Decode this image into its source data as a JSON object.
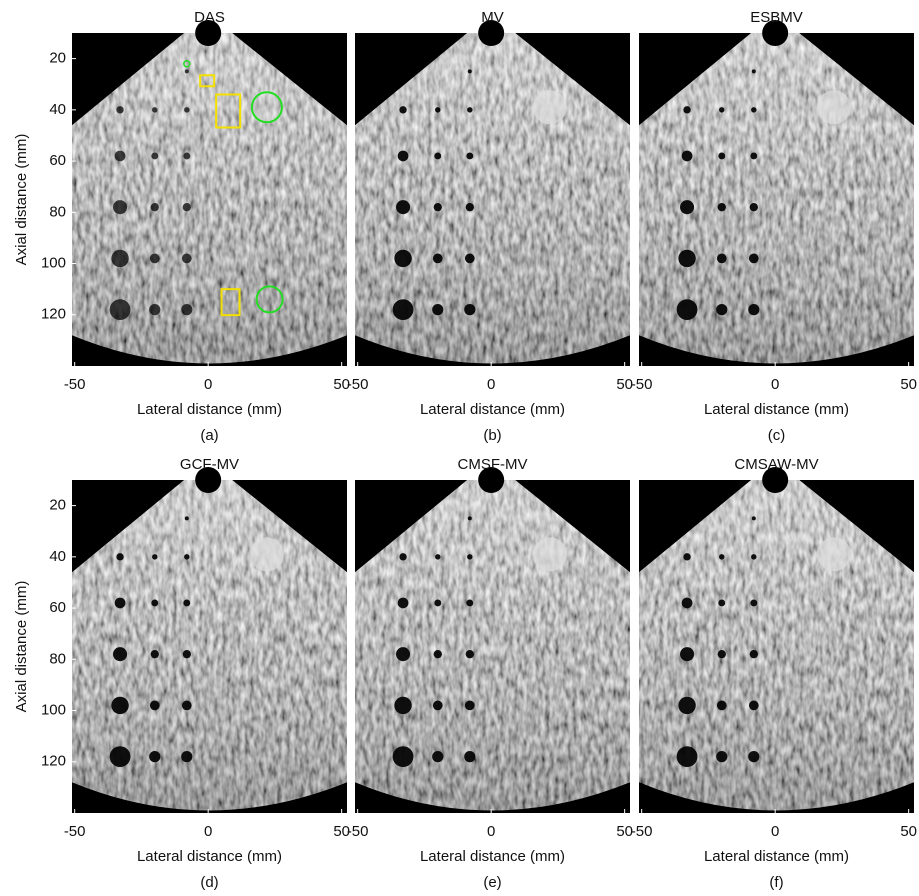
{
  "figure": {
    "xlabel": "Lateral distance (mm)",
    "ylabel": "Axial distance (mm)",
    "xlim": [
      -51,
      52
    ],
    "ylim": [
      10,
      140
    ],
    "xticks": [
      -50,
      0,
      50
    ],
    "yticks": [
      20,
      40,
      60,
      80,
      100,
      120
    ]
  },
  "panels": [
    {
      "title": "DAS",
      "caption": "(a)"
    },
    {
      "title": "MV",
      "caption": "(b)"
    },
    {
      "title": "ESBMV",
      "caption": "(c)"
    },
    {
      "title": "GCF-MV",
      "caption": "(d)"
    },
    {
      "title": "CMSF-MV",
      "caption": "(e)"
    },
    {
      "title": "CMSAW-MV",
      "caption": "(f)"
    }
  ]
}
